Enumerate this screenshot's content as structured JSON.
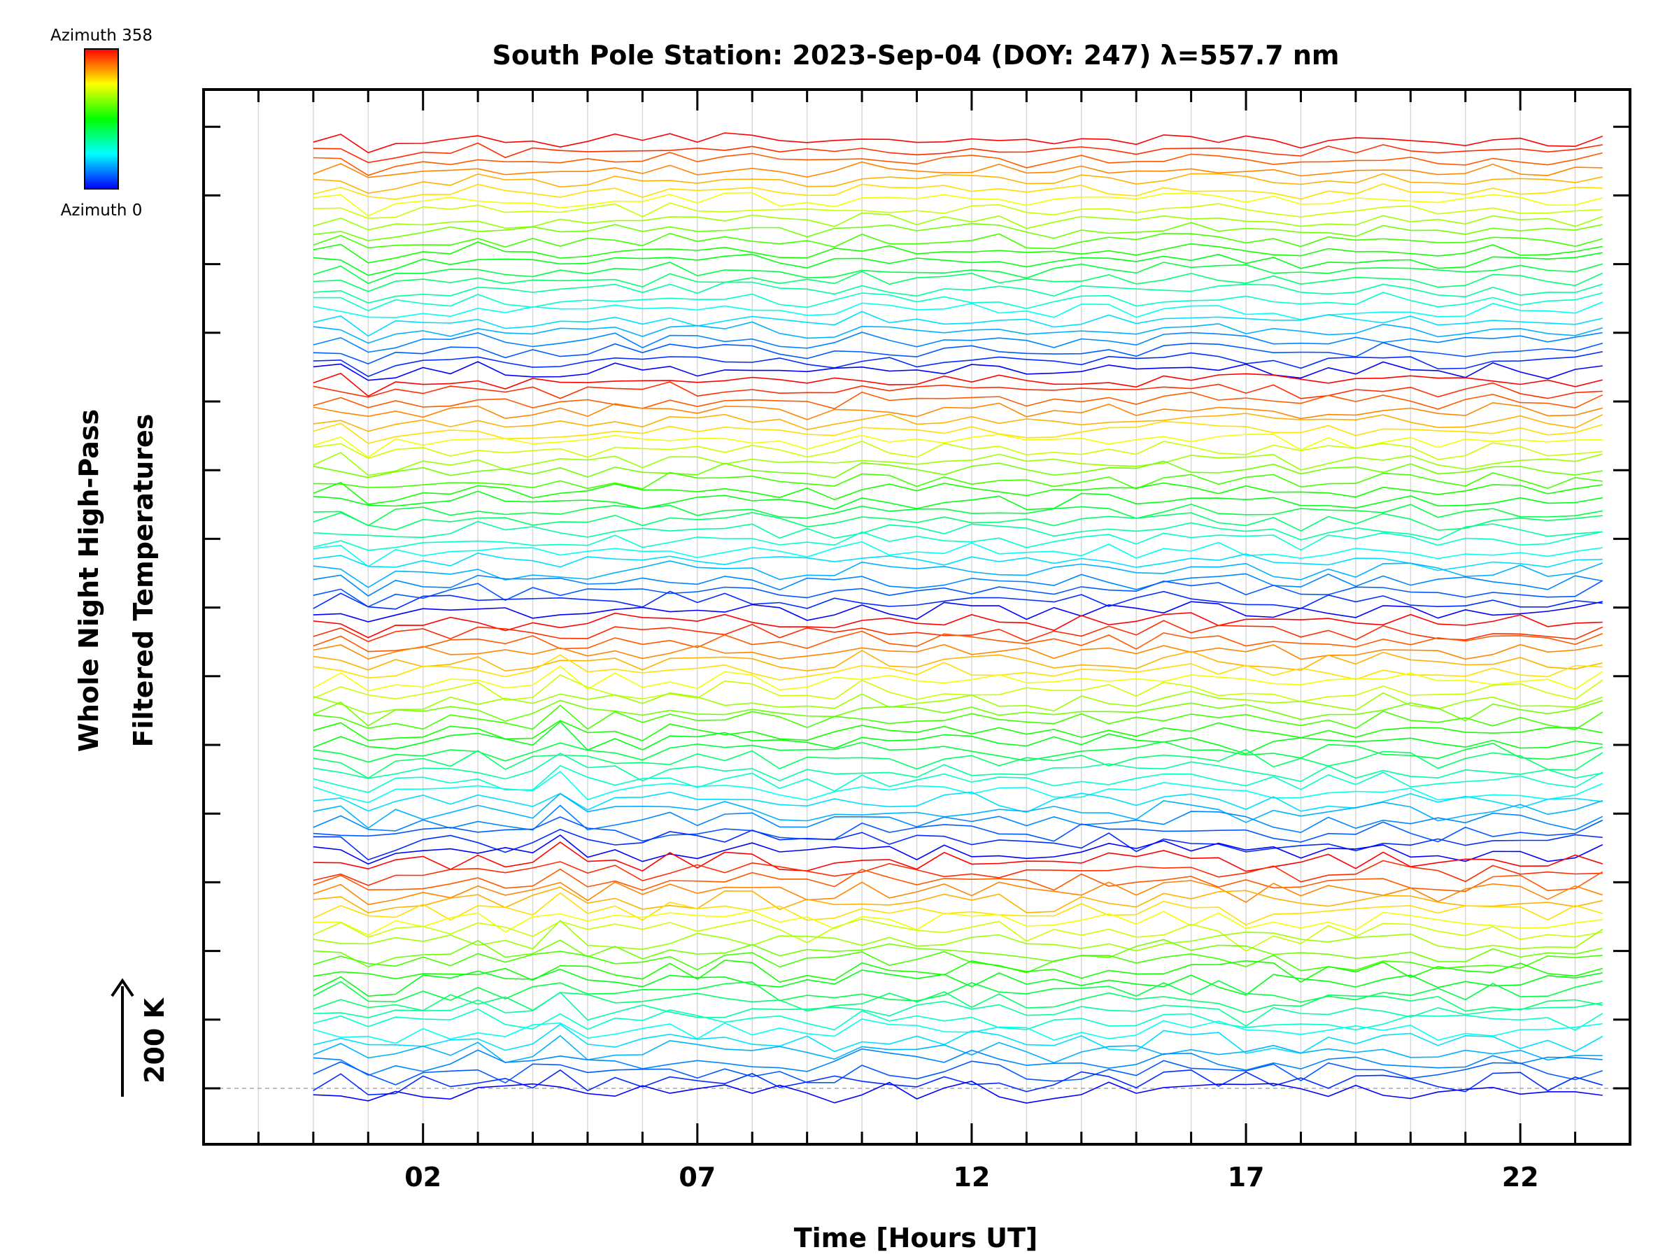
{
  "chart_data": {
    "type": "line",
    "title": "South Pole Station: 2023-Sep-04 (DOY: 247) λ=557.7 nm",
    "xlabel": "Time [Hours UT]",
    "ylabel_line1": "Whole Night High-Pass",
    "ylabel_line2": "Filtered Temperatures",
    "xlim": [
      -2,
      24
    ],
    "x_ticks": [
      2,
      7,
      12,
      17,
      22
    ],
    "x_tick_labels": [
      "02",
      "07",
      "12",
      "17",
      "22"
    ],
    "x_start": 0,
    "x_end": 23.7,
    "x_step": 0.5,
    "n_series": 96,
    "colorbar": {
      "top_label": "Azimuth 358",
      "bottom_label": "Azimuth 0",
      "colors": [
        "#ff0000",
        "#ffff00",
        "#00ff00",
        "#00ffff",
        "#0000ff"
      ]
    },
    "scale_bar": {
      "label": "200 K",
      "kelvin": 200
    },
    "grid": true,
    "background": "#ffffff"
  }
}
